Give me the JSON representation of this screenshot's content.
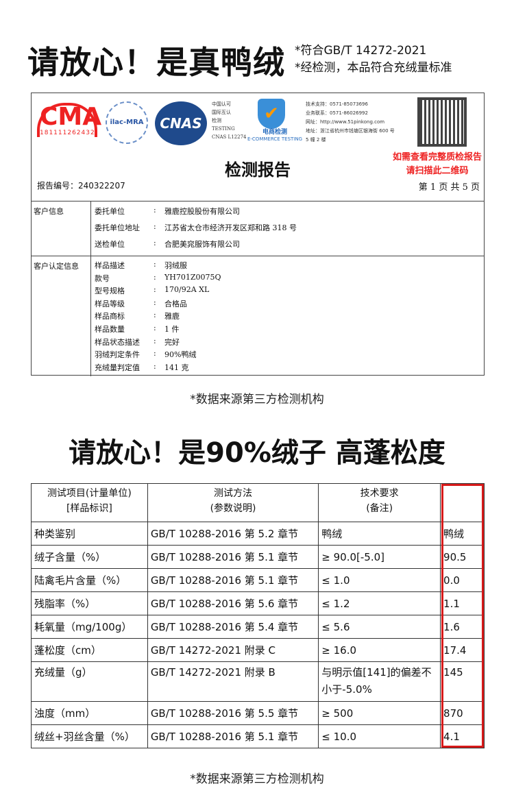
{
  "heading1": "请放心！是真鸭绒",
  "notes": [
    "*符合GB/T 14272-2021",
    "*经检测，本品符合充绒量标准"
  ],
  "report": {
    "cma": "CMA",
    "cma_no": "181111262432",
    "ilac": "ilac-MRA",
    "cnas": "CNAS",
    "cnas_text": [
      "中国认可",
      "国际互认",
      "检测",
      "TESTING",
      "CNAS L12274"
    ],
    "ecommerce": [
      "电商检测",
      "E-COMMERCE TESTING"
    ],
    "contact": [
      "技术支持：0571-85073696",
      "业务联系：0571-86026992",
      "网址：http://www.51pinkong.com",
      "地址：浙江省杭州市钱塘区银海街 600 号",
      "5 幢 2 楼"
    ],
    "qr_note": [
      "如需查看完整质检报告",
      "请扫描此二维码"
    ],
    "title": "检测报告",
    "report_no": "报告编号：240322207",
    "page": "第 1 页 共 5 页",
    "customer_label": "客户信息",
    "customer": [
      {
        "k": "委托单位",
        "v": "雅鹿控股股份有限公司"
      },
      {
        "k": "委托单位地址",
        "v": "江苏省太仓市经济开发区郑和路 318 号"
      },
      {
        "k": "送检单位",
        "v": "合肥美窕服饰有限公司"
      }
    ],
    "confirm_label": "客户认定信息",
    "confirm": [
      {
        "k": "样品描述",
        "v": "羽绒服"
      },
      {
        "k": "款号",
        "v": "YH701Z0075Q"
      },
      {
        "k": "型号规格",
        "v": "170/92A XL"
      },
      {
        "k": "样品等级",
        "v": "合格品"
      },
      {
        "k": "样品商标",
        "v": "雅鹿"
      },
      {
        "k": "样品数量",
        "v": "1 件"
      },
      {
        "k": "样品状态描述",
        "v": "完好"
      },
      {
        "k": "羽绒判定条件",
        "v": "90%鸭绒"
      },
      {
        "k": "充绒量判定值",
        "v": "141 克"
      }
    ]
  },
  "source1": "*数据来源第三方检测机构",
  "heading2": "请放心！是90%绒子 高蓬松度",
  "table": {
    "headers": [
      "测试项目(计量单位)\n[样品标识]",
      "测试方法\n(参数说明)",
      "技术要求\n(备注)",
      ""
    ],
    "rows": [
      [
        "种类鉴别",
        "GB/T 10288-2016  第 5.2 章节",
        "鸭绒",
        "鸭绒"
      ],
      [
        "绒子含量（%）",
        "GB/T 10288-2016  第 5.1 章节",
        "≥ 90.0[-5.0]",
        "90.5"
      ],
      [
        "陆禽毛片含量（%）",
        "GB/T 10288-2016  第 5.1 章节",
        "≤ 1.0",
        "0.0"
      ],
      [
        "残脂率（%）",
        "GB/T 10288-2016  第 5.6 章节",
        "≤ 1.2",
        "1.1"
      ],
      [
        "耗氧量（mg/100g）",
        "GB/T 10288-2016  第 5.4 章节",
        "≤ 5.6",
        "1.6"
      ],
      [
        "蓬松度（cm）",
        "GB/T 14272-2021  附录 C",
        "≥ 16.0",
        "17.4"
      ],
      [
        "充绒量（g）",
        "GB/T 14272-2021  附录 B",
        "与明示值[141]的偏差不小于-5.0%",
        "145"
      ],
      [
        "浊度（mm）",
        "GB/T 10288-2016  第 5.5 章节",
        "≥ 500",
        "870"
      ],
      [
        "绒丝+羽丝含量（%）",
        "GB/T 10288-2016  第 5.1 章节",
        "≤ 10.0",
        "4.1"
      ]
    ]
  },
  "source2": "*数据来源第三方检测机构",
  "colors": {
    "highlight": "#d81a1a",
    "cma": "#e22222",
    "cnas": "#1f4a8c"
  }
}
